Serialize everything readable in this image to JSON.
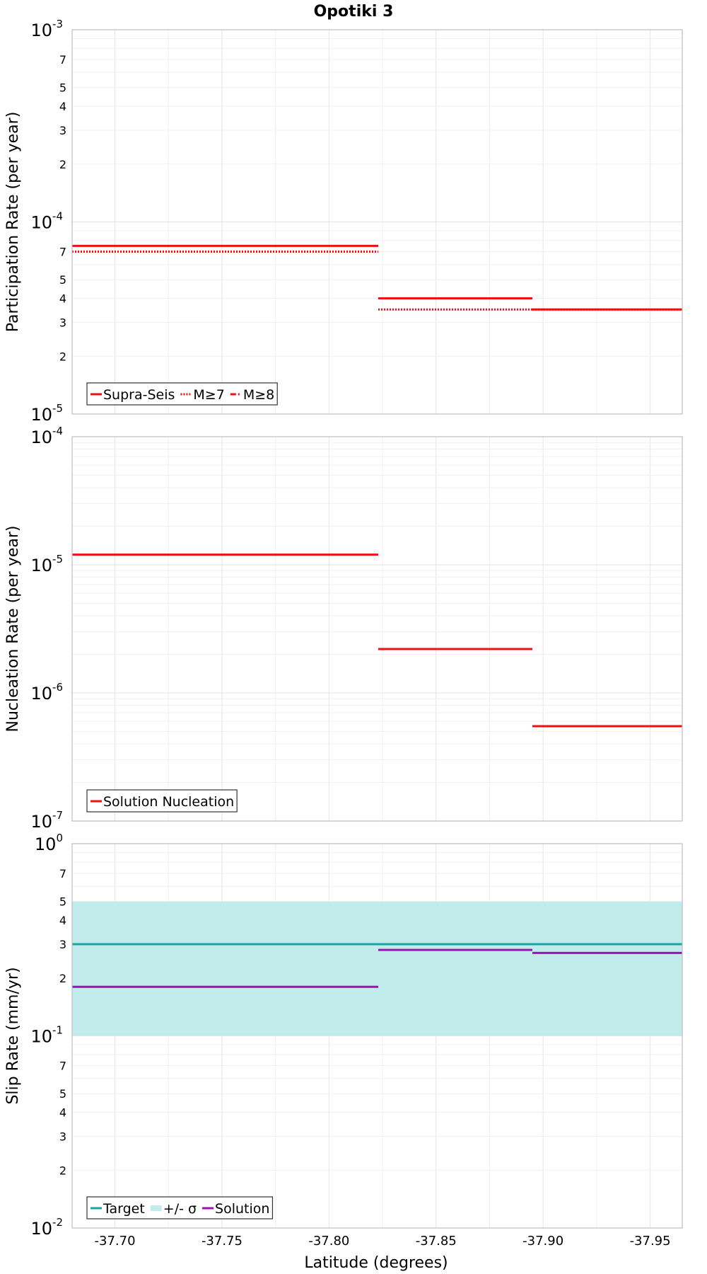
{
  "figure": {
    "title": "Opotiki 3",
    "xlabel": "Latitude (degrees)"
  },
  "colors": {
    "red": "#ee1111",
    "teal": "#17a5a5",
    "band": "#c2eceb",
    "purple": "#9b12b6"
  },
  "chart_data": [
    {
      "type": "line",
      "name": "participation",
      "ylabel": "Participation Rate (per year)",
      "yscale": "log",
      "ylim": [
        1e-05,
        0.001
      ],
      "xlim": [
        -37.68,
        -37.965
      ],
      "x_reversed": true,
      "x_ticks": [
        "-37.70",
        "-37.75",
        "-37.80",
        "-37.85",
        "-37.90",
        "-37.95"
      ],
      "legend": {
        "position": "bottom-left",
        "entries": [
          "Supra-Seis",
          "M≥7",
          "M≥8"
        ]
      },
      "series": [
        {
          "name": "Supra-Seis",
          "style": "solid",
          "color": "#ee1111",
          "segments": [
            [
              -37.68,
              -37.823,
              7.5e-05
            ],
            [
              -37.823,
              -37.895,
              4e-05
            ],
            [
              -37.895,
              -37.965,
              3.5e-05
            ]
          ]
        },
        {
          "name": "M≥7",
          "style": "dotted",
          "color": "#ee1111",
          "segments": [
            [
              -37.68,
              -37.823,
              7e-05
            ],
            [
              -37.823,
              -37.895,
              3.5e-05
            ],
            [
              -37.895,
              -37.965,
              3.5e-05
            ]
          ]
        },
        {
          "name": "M≥8",
          "style": "dashdot",
          "color": "#ee1111",
          "segments": []
        }
      ]
    },
    {
      "type": "line",
      "name": "nucleation",
      "ylabel": "Nucleation Rate (per year)",
      "yscale": "log",
      "ylim": [
        1e-07,
        0.0001
      ],
      "legend": {
        "position": "bottom-left",
        "entries": [
          "Solution Nucleation"
        ]
      },
      "series": [
        {
          "name": "Solution Nucleation",
          "style": "solid",
          "color": "#ee1111",
          "segments": [
            [
              -37.68,
              -37.823,
              1.2e-05
            ],
            [
              -37.823,
              -37.895,
              2.2e-06
            ],
            [
              -37.895,
              -37.965,
              5.5e-07
            ]
          ]
        }
      ]
    },
    {
      "type": "line",
      "name": "slip",
      "ylabel": "Slip Rate (mm/yr)",
      "yscale": "log",
      "ylim": [
        0.01,
        1
      ],
      "legend": {
        "position": "bottom-left",
        "entries": [
          "Target",
          "+/- σ",
          "Solution"
        ]
      },
      "band": {
        "name": "+/- σ",
        "color": "#c2eceb",
        "segments": [
          [
            -37.68,
            -37.965,
            0.1,
            0.5
          ]
        ]
      },
      "series": [
        {
          "name": "Target",
          "style": "solid",
          "color": "#17a5a5",
          "segments": [
            [
              -37.68,
              -37.965,
              0.3
            ]
          ]
        },
        {
          "name": "Solution",
          "style": "solid",
          "color": "#9b12b6",
          "segments": [
            [
              -37.68,
              -37.823,
              0.18
            ],
            [
              -37.823,
              -37.895,
              0.28
            ],
            [
              -37.895,
              -37.965,
              0.27
            ]
          ]
        }
      ]
    }
  ]
}
